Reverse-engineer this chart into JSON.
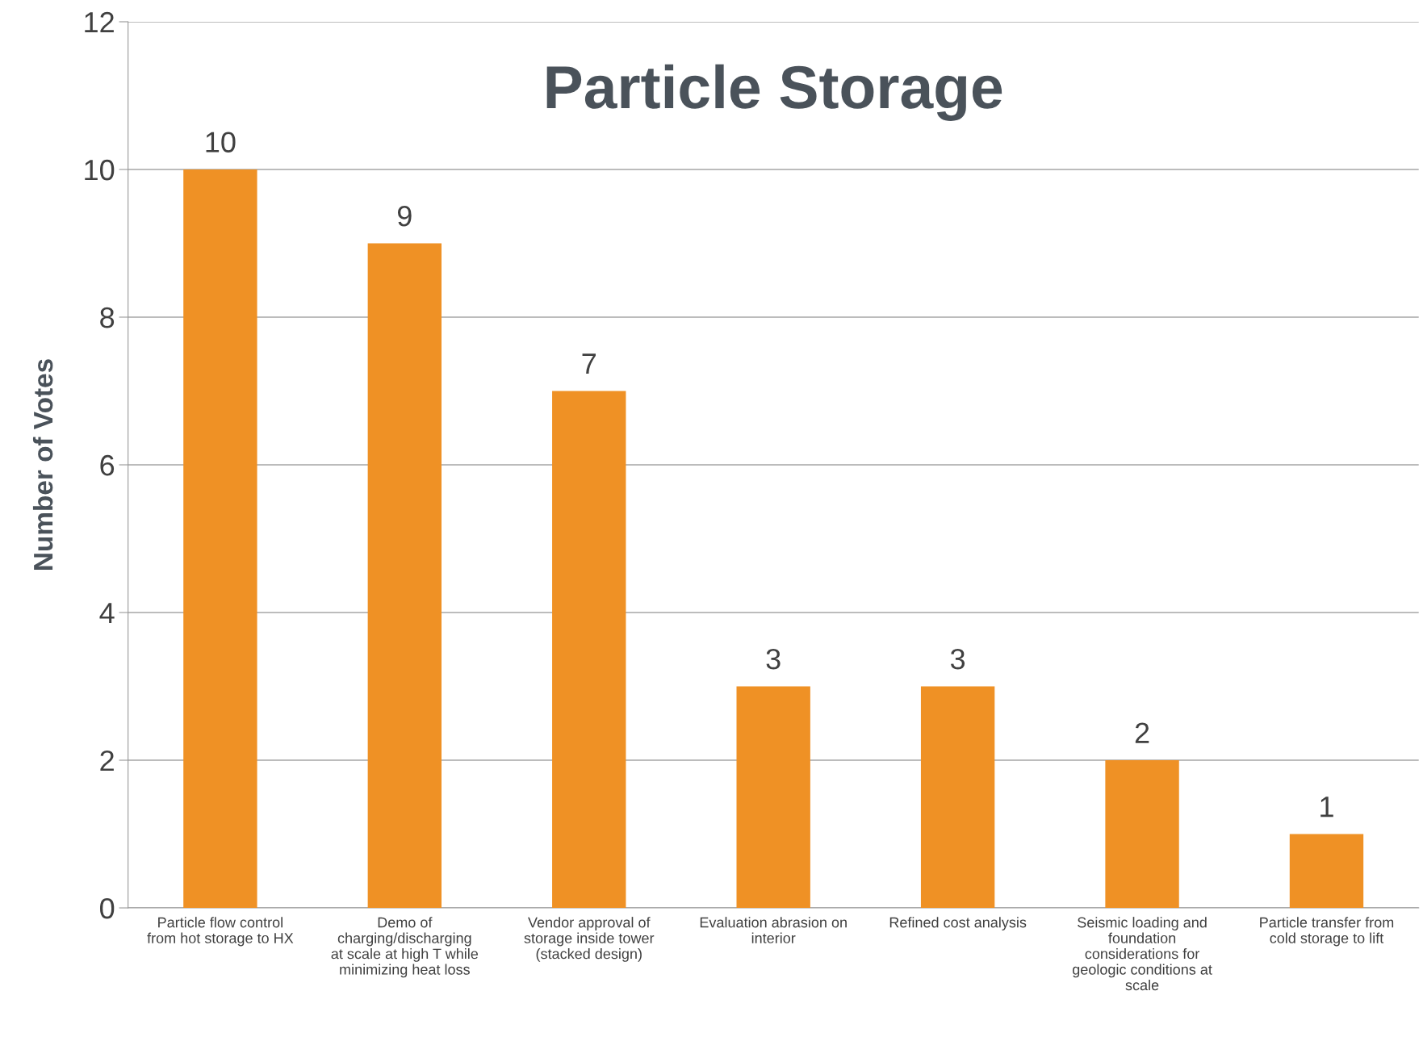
{
  "chart_data": {
    "type": "bar",
    "title": "Particle Storage",
    "ylabel": "Number of Votes",
    "categories": [
      "Particle flow control\nfrom hot storage to HX",
      "Demo of\ncharging/discharging\nat scale at high T while\nminimizing heat loss",
      "Vendor approval of\nstorage inside tower\n(stacked design)",
      "Evaluation abrasion on\ninterior",
      "Refined cost analysis",
      "Seismic loading and\nfoundation\nconsiderations for\ngeologic conditions at\nscale",
      "Particle transfer from\ncold storage to lift"
    ],
    "values": [
      10,
      9,
      7,
      3,
      3,
      2,
      1
    ],
    "color": "#ef9125",
    "ylim": [
      0,
      12
    ],
    "yticks": [
      0,
      2,
      4,
      6,
      8,
      10,
      12
    ],
    "grid": "y",
    "data_labels": true,
    "legend": false
  }
}
